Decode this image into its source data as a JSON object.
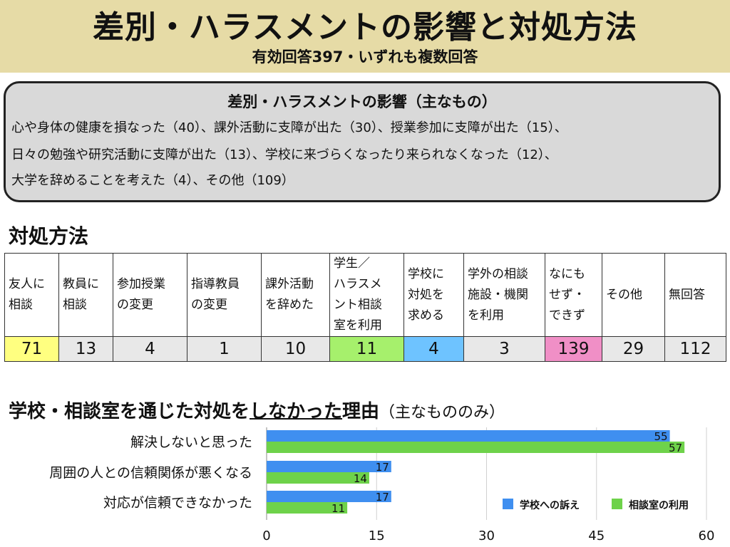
{
  "header": {
    "title": "差別・ハラスメントの影響と対処方法",
    "subtitle": "有効回答397・いずれも複数回答"
  },
  "impact": {
    "title": "差別・ハラスメントの影響（主なもの）",
    "lines": [
      "心や身体の健康を損なった（40）、課外活動に支障が出た（30）、授業参加に支障が出た（15）、",
      "日々の勉強や研究活動に支障が出た（13）、学校に来づらくなったり来られなくなった（12）、",
      "大学を辞めることを考えた（4）、その他（109）"
    ]
  },
  "coping": {
    "heading": "対処方法",
    "columns": [
      {
        "label": "友人に\n相談",
        "value": "71",
        "color": "#ffff80"
      },
      {
        "label": "教員に\n相談",
        "value": "13",
        "color": "#e8e8e8"
      },
      {
        "label": "参加授業\nの変更",
        "value": "4",
        "color": "#e8e8e8"
      },
      {
        "label": "指導教員\nの変更",
        "value": "1",
        "color": "#e8e8e8"
      },
      {
        "label": "課外活動\nを辞めた",
        "value": "10",
        "color": "#e8e8e8"
      },
      {
        "label": "学生／\nハラスメ\nント相談\n室を利用",
        "value": "11",
        "color": "#a6f06c"
      },
      {
        "label": "学校に\n対処を\n求める",
        "value": "4",
        "color": "#6ec3ff"
      },
      {
        "label": "学外の相談\n施設・機関\nを利用",
        "value": "3",
        "color": "#e8e8e8"
      },
      {
        "label": "なにも\nせず・\nできず",
        "value": "139",
        "color": "#f08fc6"
      },
      {
        "label": "その他",
        "value": "29",
        "color": "#e8e8e8"
      },
      {
        "label": "無回答",
        "value": "112",
        "color": "#e8e8e8"
      }
    ]
  },
  "reasons": {
    "heading_pre": "学校・相談室を通じた対処を",
    "heading_ul": "しなかった",
    "heading_post": "理由",
    "heading_note": "（主なもののみ）"
  },
  "chart_data": {
    "type": "bar",
    "orientation": "horizontal",
    "categories": [
      "解決しないと思った",
      "周囲の人との信頼関係が悪くなる",
      "対応が信頼できなかった"
    ],
    "series": [
      {
        "name": "学校への訴え",
        "color": "#3f8ff0",
        "values": [
          55,
          17,
          17
        ]
      },
      {
        "name": "相談室の利用",
        "color": "#6ed24a",
        "values": [
          57,
          14,
          11
        ]
      }
    ],
    "xlim": [
      0,
      60
    ],
    "xticks": [
      "0",
      "15",
      "30",
      "45",
      "60"
    ],
    "grid": true,
    "legend": "bottom-right"
  }
}
